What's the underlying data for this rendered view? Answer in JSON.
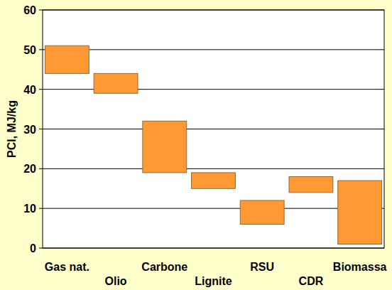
{
  "chart_data": {
    "type": "range_bar",
    "y_label": "PCI, MJ/kg",
    "categories": [
      "Gas nat.",
      "Olio",
      "Carbone",
      "Lignite",
      "RSU",
      "CDR",
      "Biomassa"
    ],
    "low": [
      44,
      39,
      19,
      15,
      6,
      14,
      1
    ],
    "high": [
      51,
      44,
      32,
      19,
      12,
      18,
      17
    ],
    "color": "#ff9933",
    "ylim": [
      0,
      60
    ],
    "yticks": [
      0,
      10,
      20,
      30,
      40,
      50,
      60
    ],
    "grid": true
  }
}
